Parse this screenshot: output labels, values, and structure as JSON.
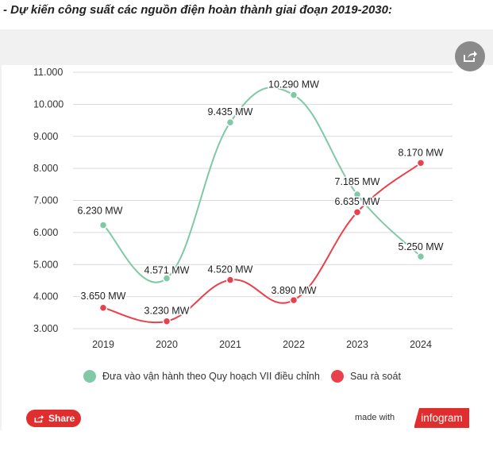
{
  "heading": "- Dự kiến công suất các nguồn điện hoàn thành giai đoạn 2019-2030:",
  "chart_data": {
    "type": "line",
    "categories": [
      "2019",
      "2020",
      "2021",
      "2022",
      "2023",
      "2024"
    ],
    "y_tick_labels": [
      "3.000",
      "4.000",
      "5.000",
      "6.000",
      "7.000",
      "8.000",
      "9.000",
      "10.000",
      "11.000"
    ],
    "ylim": [
      3000,
      11000
    ],
    "grid": true,
    "legend_position": "bottom",
    "series": [
      {
        "name": "Đưa vào vận hành theo Quy hoạch VII điều chỉnh",
        "color": "#7fcaa5",
        "values": [
          6230,
          4571,
          9435,
          10290,
          7185,
          5250
        ],
        "labels": [
          "6.230 MW",
          "4.571 MW",
          "9.435 MW",
          "10.290 MW",
          "7.185 MW",
          "5.250 MW"
        ]
      },
      {
        "name": "Sau rà soát",
        "color": "#e8414b",
        "values": [
          3650,
          3230,
          4520,
          3890,
          6635,
          8170
        ],
        "labels": [
          "3.650 MW",
          "3.230 MW",
          "4.520 MW",
          "3.890 MW",
          "6.635 MW",
          "8.170 MW"
        ]
      }
    ]
  },
  "footer": {
    "share_label": "Share",
    "made_with": "made with",
    "brand": "infogram"
  },
  "icons": {
    "share_top": "share-icon",
    "share_button": "share-icon"
  }
}
